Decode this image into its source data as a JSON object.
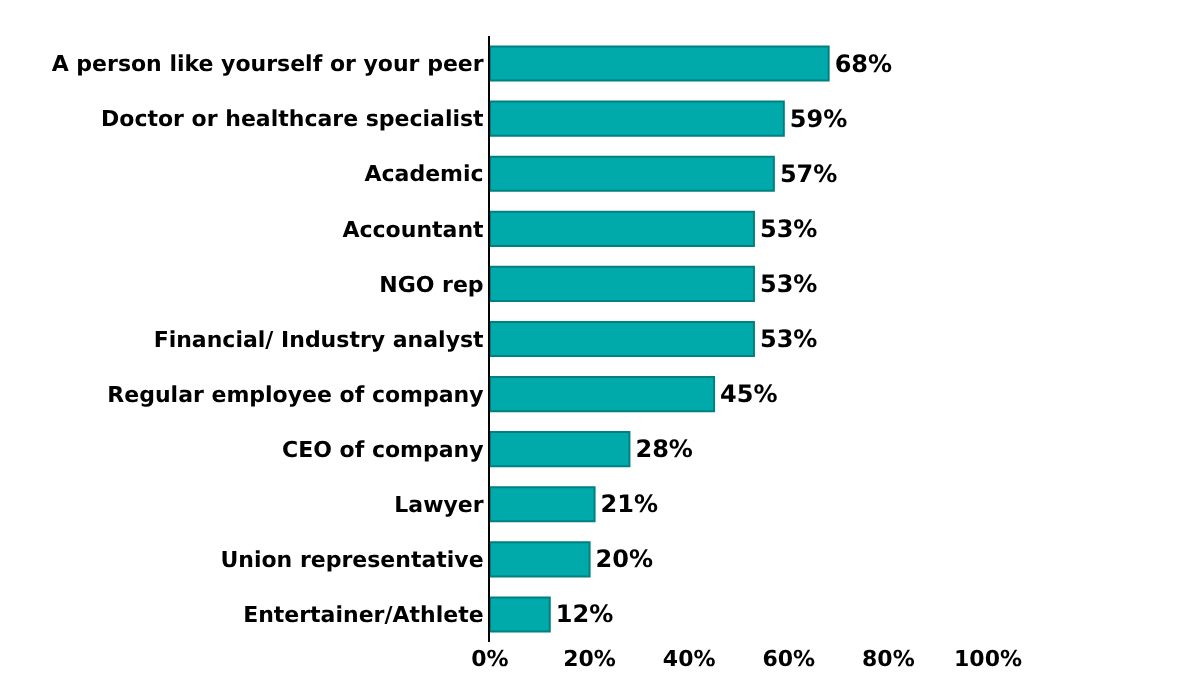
{
  "chart_data": {
    "type": "bar",
    "orientation": "horizontal",
    "categories": [
      "A person like yourself or your peer",
      "Doctor or healthcare specialist",
      "Academic",
      "Accountant",
      "NGO rep",
      "Financial/ Industry analyst",
      "Regular employee of company",
      "CEO of company",
      "Lawyer",
      "Union representative",
      "Entertainer/Athlete"
    ],
    "values": [
      68,
      59,
      57,
      53,
      53,
      53,
      45,
      28,
      21,
      20,
      12
    ],
    "value_labels": [
      "68%",
      "59%",
      "57%",
      "53%",
      "53%",
      "53%",
      "45%",
      "28%",
      "21%",
      "20%",
      "12%"
    ],
    "color": "#00aaaa",
    "xlim": [
      0,
      100
    ],
    "xticks": [
      {
        "value": 0,
        "label": "0%"
      },
      {
        "value": 20,
        "label": "20%"
      },
      {
        "value": 40,
        "label": "40%"
      },
      {
        "value": 60,
        "label": "60%"
      },
      {
        "value": 80,
        "label": "80%"
      },
      {
        "value": 100,
        "label": "100%"
      }
    ],
    "legend": false
  }
}
